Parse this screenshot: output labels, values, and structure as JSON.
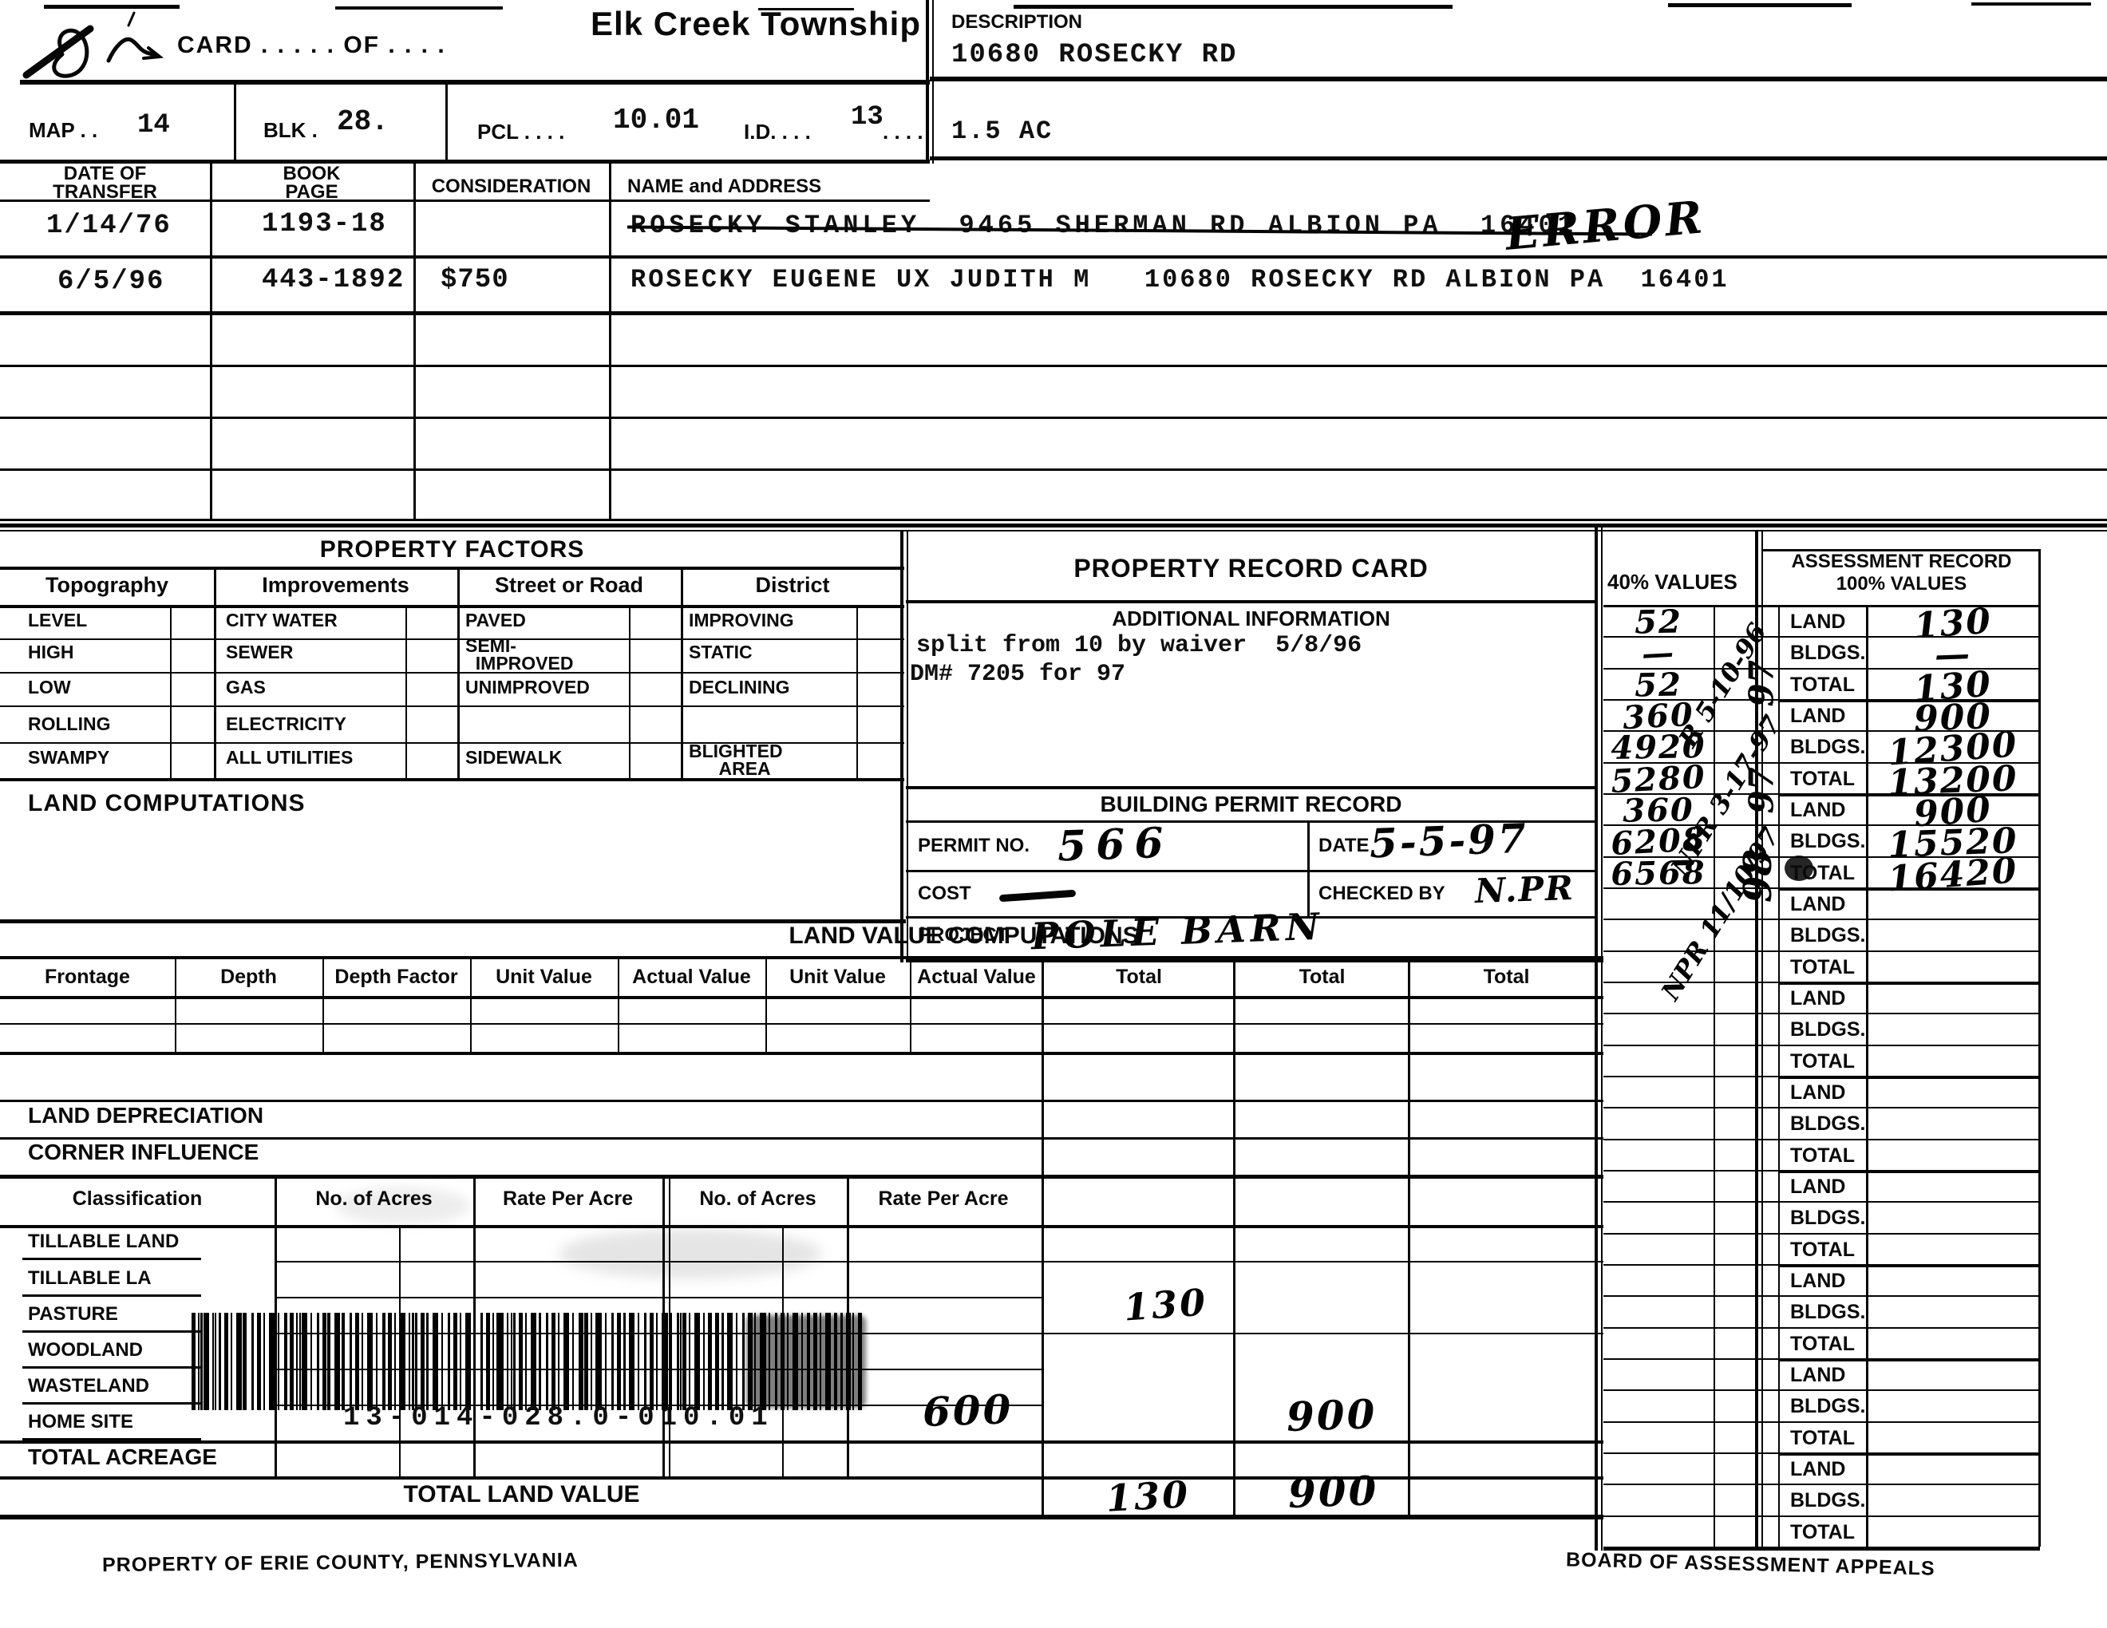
{
  "document": {
    "township": "Elk Creek Township",
    "card_label": "CARD . . . . . OF . . . .",
    "description": {
      "label": "DESCRIPTION",
      "line1": "10680 ROSECKY RD",
      "line2": "1.5 AC"
    },
    "parcel": {
      "map_label": "MAP . .",
      "map": "14",
      "blk_label": "BLK .",
      "blk": "28.",
      "pcl_label": "PCL . . . .",
      "pcl": "10.01",
      "id_label": "I.D. . . .",
      "id": "13",
      "trailing_dots": ". . . . . ."
    },
    "footer_left": "PROPERTY OF ERIE COUNTY, PENNSYLVANIA",
    "footer_right": "BOARD OF ASSESSMENT APPEALS"
  },
  "transfer_table": {
    "col1": "DATE OF\nTRANSFER",
    "col2": "BOOK\nPAGE",
    "col3": "CONSIDERATION",
    "col4": "NAME and ADDRESS",
    "rows": [
      {
        "date": "1/14/76",
        "book_page": "1193-18",
        "consideration": "",
        "name_address": "ROSECKY STANLEY  9465 SHERMAN RD ALBION PA  16401",
        "struck": true,
        "note": "ERROR"
      },
      {
        "date": "6/5/96",
        "book_page": "443-1892",
        "consideration": "$750",
        "name_address": "ROSECKY EUGENE UX JUDITH M   10680 ROSECKY RD ALBION PA  16401",
        "struck": false,
        "note": ""
      }
    ]
  },
  "property_factors": {
    "title": "PROPERTY FACTORS",
    "columns": [
      "Topography",
      "Improvements",
      "Street or Road",
      "District"
    ],
    "rows": [
      [
        "LEVEL",
        "CITY WATER",
        "PAVED",
        "IMPROVING"
      ],
      [
        "HIGH",
        "SEWER",
        "SEMI-\n  IMPROVED",
        "STATIC"
      ],
      [
        "LOW",
        "GAS",
        "UNIMPROVED",
        "DECLINING"
      ],
      [
        "ROLLING",
        "ELECTRICITY",
        "",
        ""
      ],
      [
        "SWAMPY",
        "ALL UTILITIES",
        "SIDEWALK",
        "BLIGHTED\n      AREA"
      ]
    ]
  },
  "land_computations_label": "LAND COMPUTATIONS",
  "property_record_card": {
    "title": "PROPERTY RECORD CARD",
    "additional_info_title": "ADDITIONAL INFORMATION",
    "additional_info": [
      "split from 10 by waiver  5/8/96",
      "DM# 7205 for 97"
    ],
    "building_permit": {
      "title": "BUILDING PERMIT RECORD",
      "permit_no_label": "PERMIT NO.",
      "permit_no": "566",
      "date_label": "DATE",
      "date": "5-5-97",
      "cost_label": "COST",
      "checked_by_label": "CHECKED BY",
      "checked_by": "N.PR",
      "project_label": "PROJECT",
      "project": "POLE BARN"
    }
  },
  "land_value_computations": {
    "title": "LAND VALUE COMPUTATIONS",
    "headers": [
      "Frontage",
      "Depth",
      "Depth Factor",
      "Unit Value",
      "Actual Value",
      "Unit Value",
      "Actual Value",
      "Total",
      "Total",
      "Total"
    ]
  },
  "land_depreciation_label": "LAND DEPRECIATION",
  "corner_influence_label": "CORNER INFLUENCE",
  "classification": {
    "headers": [
      "Classification",
      "No. of Acres",
      "Rate Per Acre",
      "No. of Acres",
      "Rate Per Acre"
    ],
    "rows": [
      "TILLABLE LAND",
      "TILLABLE LA",
      "PASTURE",
      "WOODLAND",
      "WASTELAND",
      "HOME SITE"
    ],
    "total_acreage_label": "TOTAL ACREAGE",
    "total_land_value_label": "TOTAL LAND VALUE",
    "handwritten": {
      "tillable_total": "130",
      "home_site_rate": "600",
      "home_site_total": "900",
      "grand_total_1": "130",
      "grand_total_2": "900"
    }
  },
  "barcode_number": "13-014-028.0-010.01",
  "values_panel": {
    "left_header": "40% VALUES",
    "right_header1": "ASSESSMENT RECORD",
    "right_header2": "100% VALUES",
    "row_labels": [
      "LAND",
      "BLDGS.",
      "TOTAL"
    ],
    "forty_values": [
      "52",
      "—",
      "52",
      "360",
      "4920",
      "5280",
      "360",
      "6208",
      "6568"
    ],
    "hundred_values": [
      "130",
      "—",
      "130",
      "900",
      "12300",
      "13200",
      "900",
      "15520",
      "16420"
    ],
    "group_count": 10,
    "diagonal_notes": [
      "R 5-10-96",
      "NPR 3-17-97",
      "NPR 11/10/97"
    ],
    "year_marks": [
      "97",
      "97",
      "98"
    ]
  }
}
